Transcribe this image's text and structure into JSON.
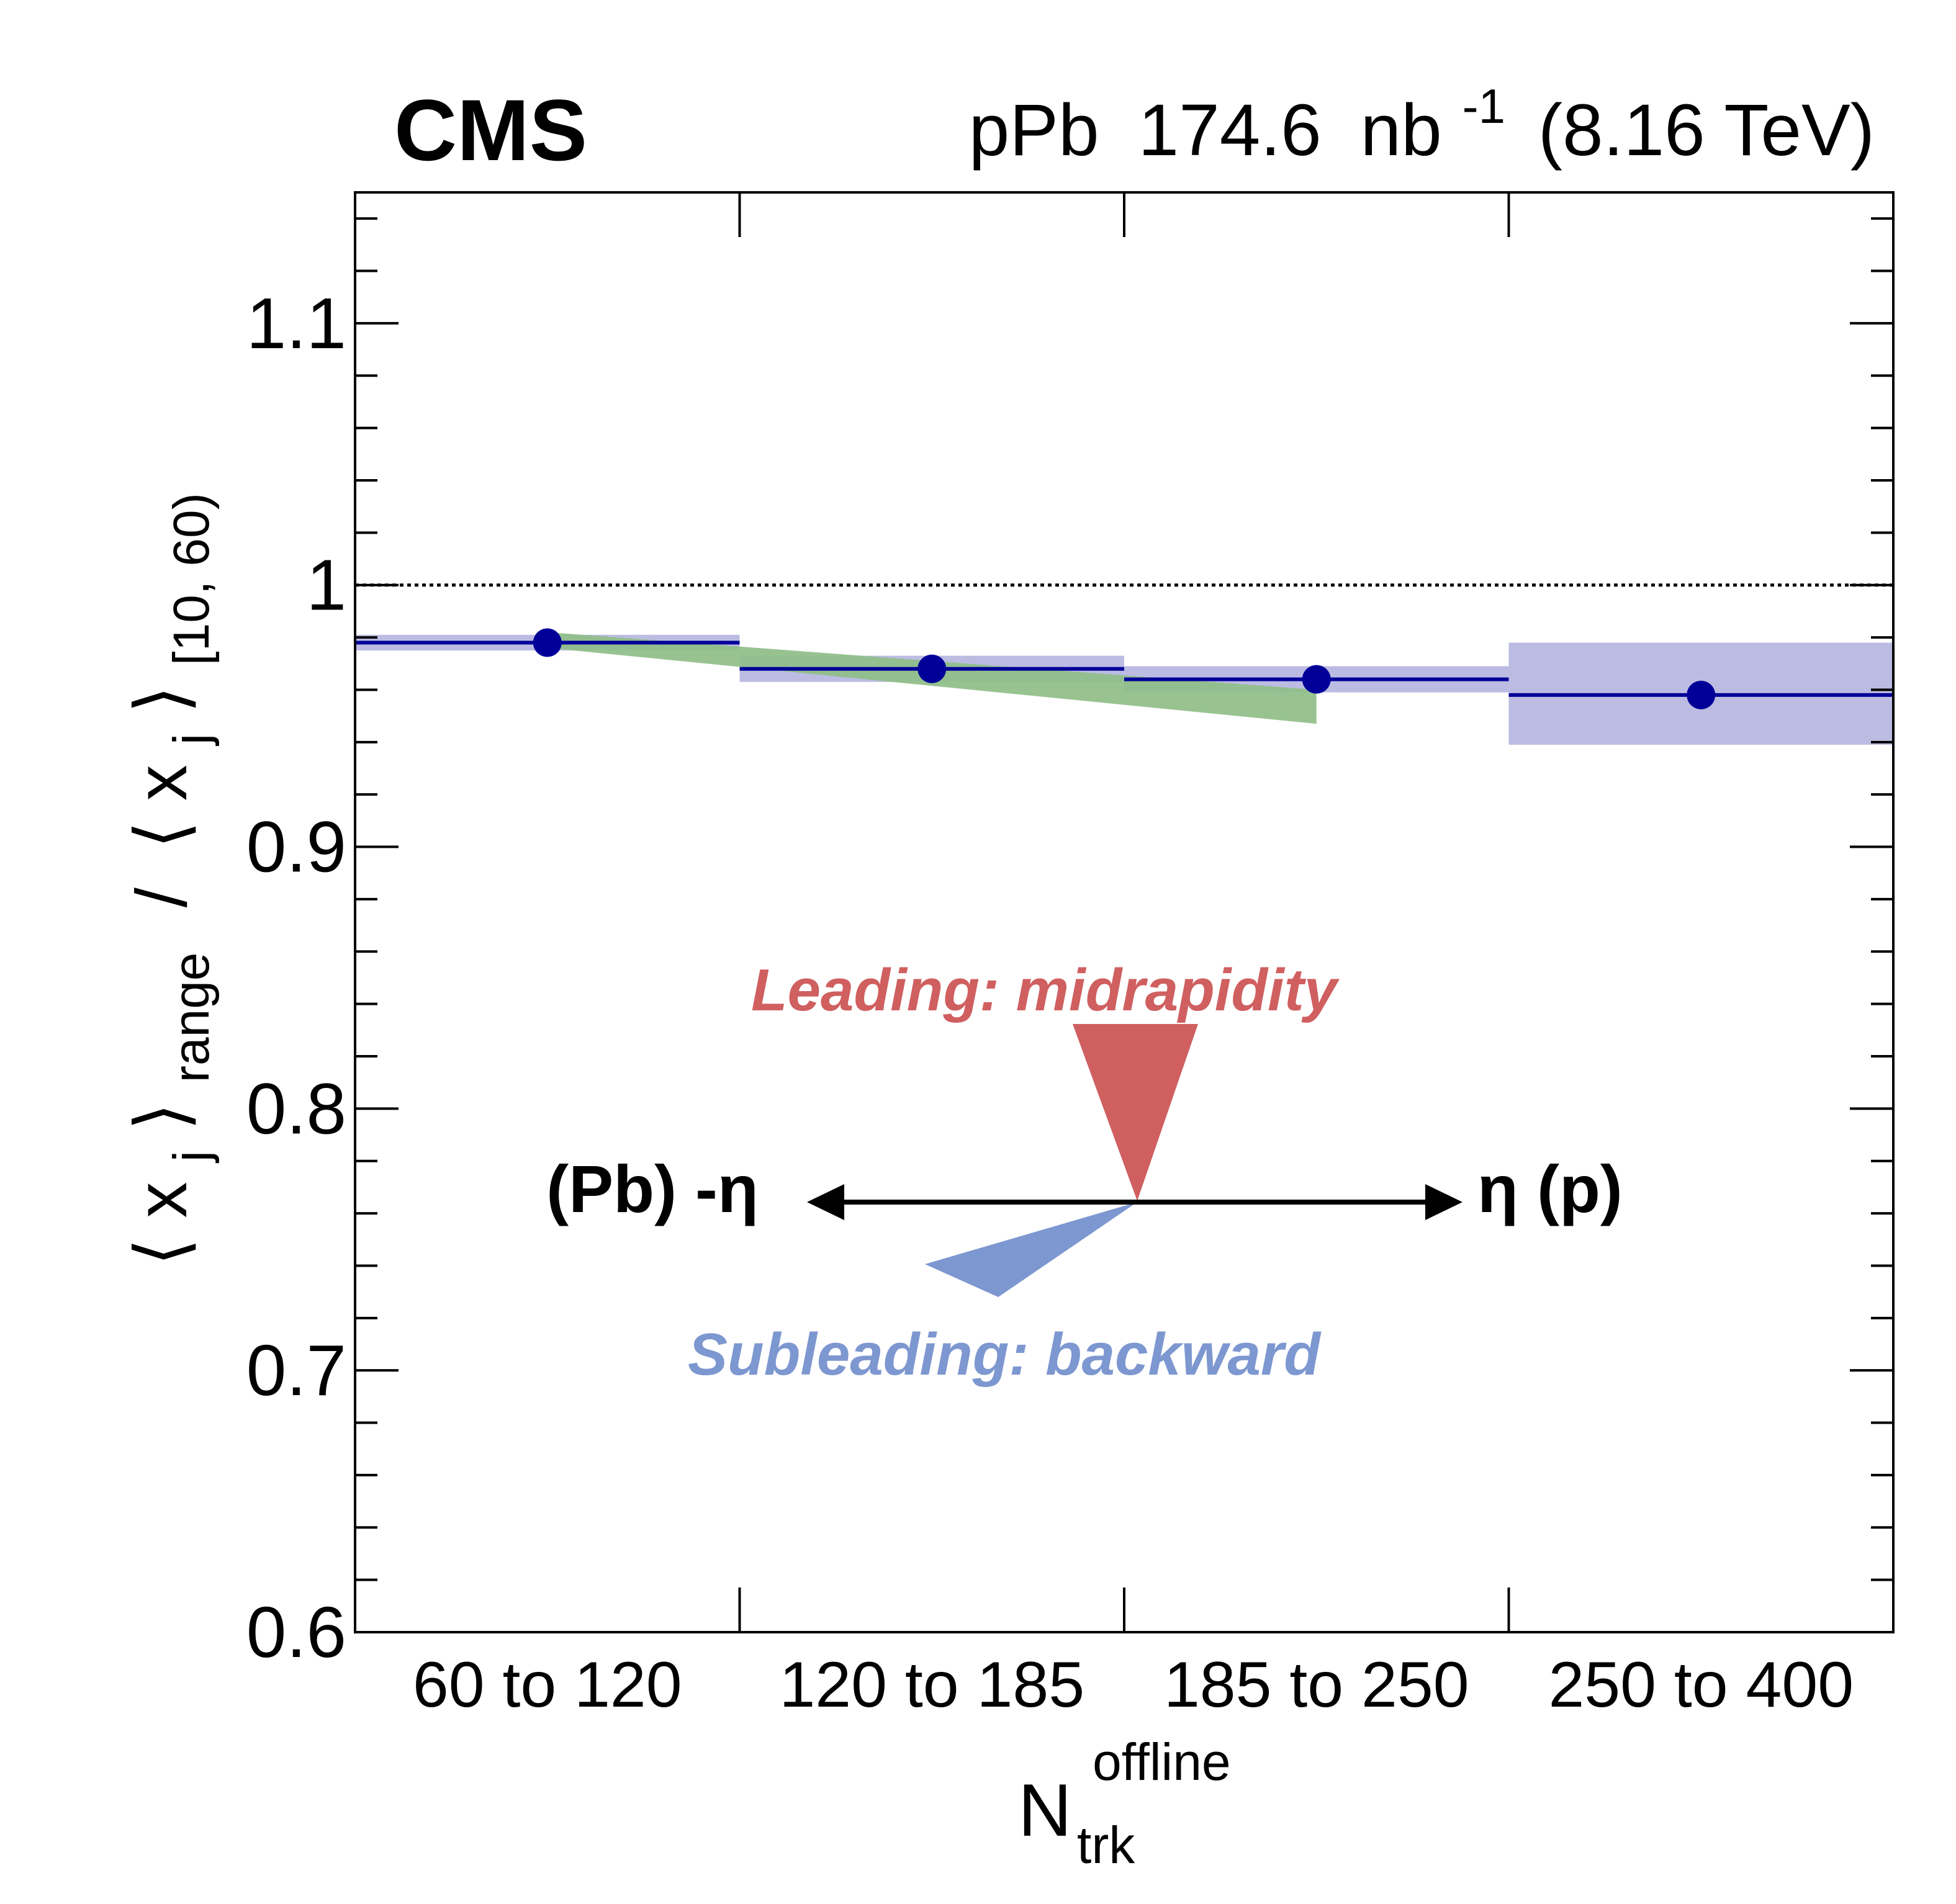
{
  "chart_data": {
    "type": "scatter",
    "experiment": "CMS",
    "header_right": {
      "system": "pPb",
      "luminosity": "174.6",
      "unit": "nb",
      "unit_exp": "-1",
      "energy": "(8.16 TeV)"
    },
    "xlabel": {
      "main": "N",
      "sup": "offline",
      "sub": "trk"
    },
    "ylabel": {
      "open": "⟨",
      "var": "x",
      "close": "⟩",
      "sub1": "j",
      "range_sub": "range",
      "slash": "/",
      "sub2": "j",
      "ref_sub": "[10, 60)"
    },
    "categories": [
      "60 to 120",
      "120 to 185",
      "185 to 250",
      "250 to 400"
    ],
    "ylim": [
      0.6,
      1.15
    ],
    "yticks": [
      0.6,
      0.7,
      0.8,
      0.9,
      1.0,
      1.1
    ],
    "ytick_labels": [
      "0.6",
      "0.7",
      "0.8",
      "0.9",
      "1",
      "1.1"
    ],
    "reference_line": 1.0,
    "series": [
      {
        "values": [
          0.978,
          0.968,
          0.964,
          0.958
        ],
        "syst_low": [
          0.975,
          0.963,
          0.959,
          0.939
        ],
        "syst_high": [
          0.981,
          0.973,
          0.969,
          0.978
        ],
        "color": "#000099",
        "band_color": "#BCBCE3"
      }
    ],
    "theory_band": {
      "color": "#8FBE88",
      "x": [
        0.5,
        2.5
      ],
      "lower": [
        0.976,
        0.947
      ],
      "upper": [
        0.982,
        0.96
      ]
    },
    "annotation": {
      "leading": "Leading: midrapidity",
      "subleading": "Subleading: backward",
      "left": "(Pb) -η",
      "right": "η (p)",
      "leading_color": "#D05F60",
      "subleading_color": "#7D97D0"
    }
  }
}
